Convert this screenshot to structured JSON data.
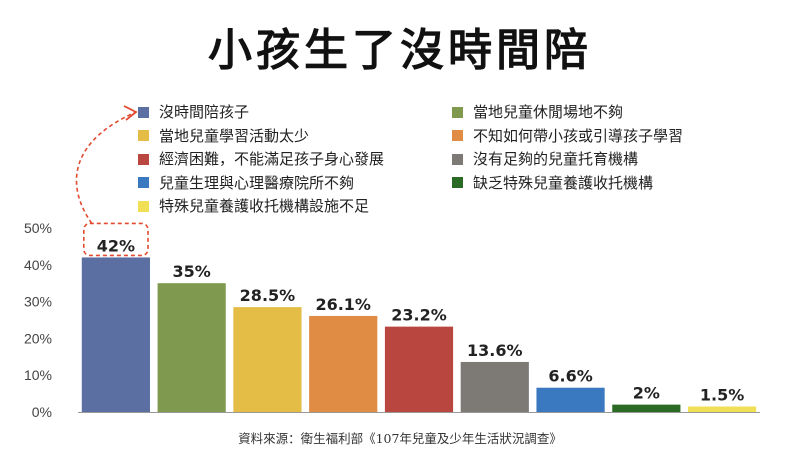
{
  "title": "小孩生了沒時間陪",
  "source": "資料來源：衛生福利部《107年兒童及少年生活狀況調查》",
  "chart_data": {
    "type": "bar",
    "categories": [
      "沒時間陪孩子",
      "當地兒童休閒場地不夠",
      "當地兒童學習活動太少",
      "不知如何帶小孩或引導孩子學習",
      "經濟困難，不能滿足孩子身心發展",
      "沒有足夠的兒童托育機構",
      "兒童生理與心理醫療院所不夠",
      "缺乏特殊兒童養護收托機構",
      "特殊兒童養護收托機構設施不足"
    ],
    "values": [
      42,
      35,
      28.5,
      26.1,
      23.2,
      13.6,
      6.6,
      2,
      1.5
    ],
    "data_labels": [
      "42%",
      "35%",
      "28.5%",
      "26.1%",
      "23.2%",
      "13.6%",
      "6.6%",
      "2%",
      "1.5%"
    ],
    "colors": [
      "#5b6fa3",
      "#7f9a4e",
      "#e3bd45",
      "#e08c44",
      "#b9463f",
      "#7d7a76",
      "#3a78bf",
      "#2b6a25",
      "#f1df56"
    ],
    "ylim": [
      0,
      50
    ],
    "yticks": [
      "0%",
      "10%",
      "20%",
      "30%",
      "40%",
      "50%"
    ],
    "legend_position": "top",
    "grid": false,
    "highlight_color": "#e24b2f"
  }
}
